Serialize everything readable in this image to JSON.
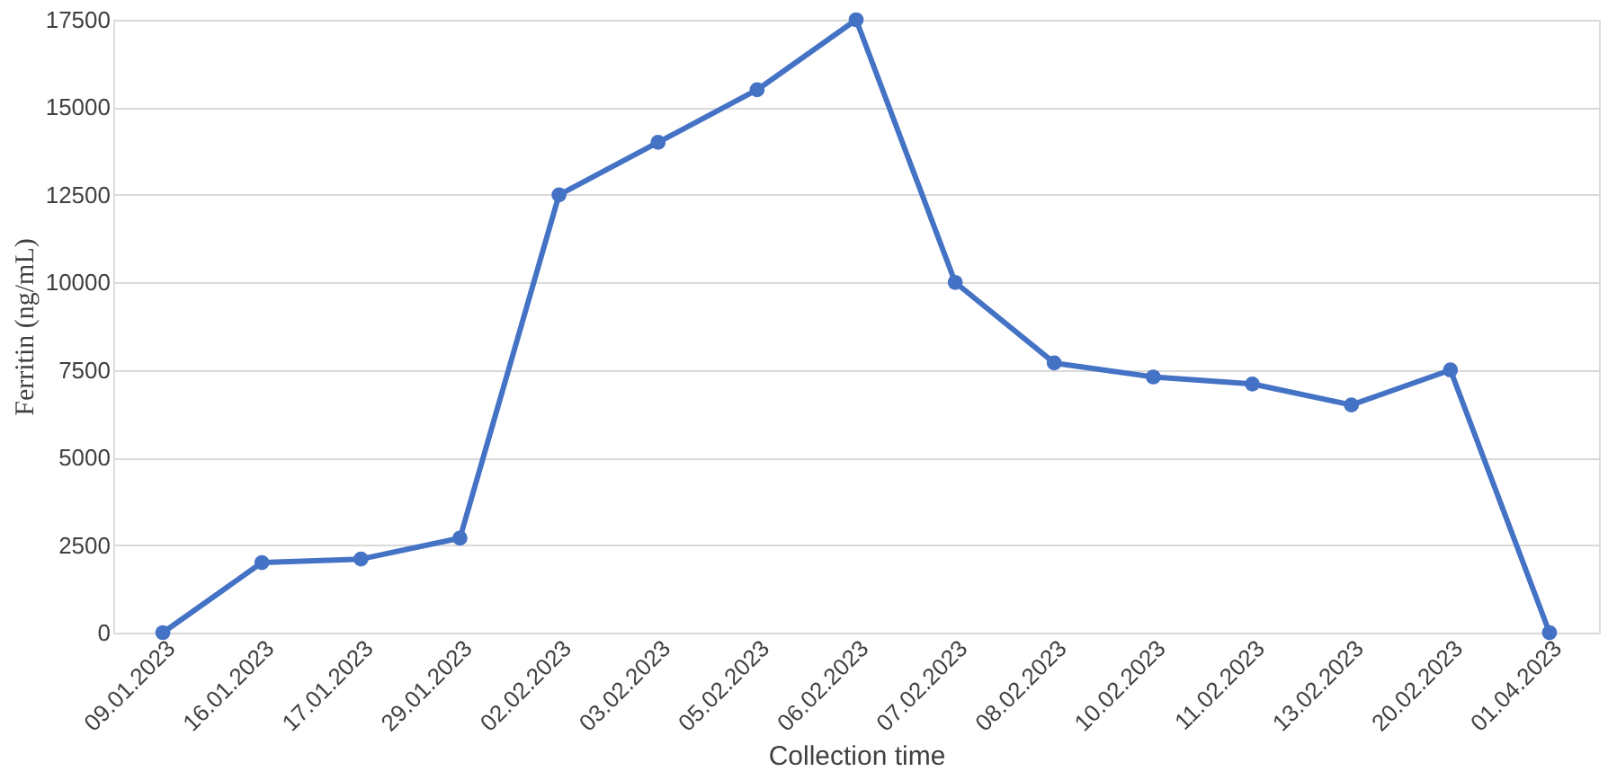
{
  "chart_data": {
    "type": "line",
    "xlabel": "Collection time",
    "ylabel": "Ferritin (ng/mL)",
    "categories": [
      "09.01.2023",
      "16.01.2023",
      "17.01.2023",
      "29.01.2023",
      "02.02.2023",
      "03.02.2023",
      "05.02.2023",
      "06.02.2023",
      "07.02.2023",
      "08.02.2023",
      "10.02.2023",
      "11.02.2023",
      "13.02.2023",
      "20.02.2023",
      "01.04.2023"
    ],
    "series": [
      {
        "color": "#4472c4",
        "values": [
          0,
          2000,
          2100,
          2700,
          12500,
          14000,
          15500,
          17500,
          10000,
          7700,
          7300,
          7100,
          6500,
          7500,
          0
        ]
      }
    ],
    "ylim": [
      0,
      17500
    ],
    "yticks": [
      0,
      2500,
      5000,
      7500,
      10000,
      12500,
      15000,
      17500
    ],
    "grid": "y",
    "marker": "circle",
    "line_style": "solid",
    "legend": false
  }
}
